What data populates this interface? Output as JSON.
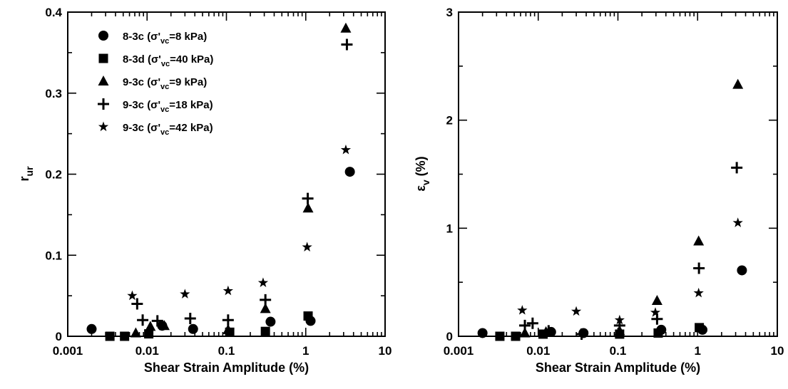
{
  "chart_data": [
    {
      "id": "left",
      "type": "scatter",
      "xscale": "log",
      "xlim": [
        0.001,
        10
      ],
      "ylim": [
        0,
        0.4
      ],
      "xlabel": "Shear Strain Amplitude (%)",
      "ylabel": {
        "main": "r",
        "sub": "ur"
      },
      "xticks": [
        {
          "v": 0.001,
          "label": "0.001"
        },
        {
          "v": 0.01,
          "label": "0.01"
        },
        {
          "v": 0.1,
          "label": "0.1"
        },
        {
          "v": 1,
          "label": "1"
        },
        {
          "v": 10,
          "label": "10"
        }
      ],
      "yticks": [
        {
          "v": 0,
          "label": "0"
        },
        {
          "v": 0.1,
          "label": "0.1"
        },
        {
          "v": 0.2,
          "label": "0.2"
        },
        {
          "v": 0.3,
          "label": "0.3"
        },
        {
          "v": 0.4,
          "label": "0.4"
        }
      ],
      "legend_position": "top-left",
      "grid": false,
      "series": [
        {
          "name": {
            "test": "8-3c (σ'",
            "sub": "vc",
            "rest": "=8 kPa)"
          },
          "marker": "circle",
          "points": [
            [
              0.002,
              0.009
            ],
            [
              0.038,
              0.009
            ],
            [
              0.36,
              0.018
            ],
            [
              1.15,
              0.019
            ],
            [
              3.6,
              0.203
            ],
            [
              0.0155,
              0.013
            ]
          ]
        },
        {
          "name": {
            "test": "8-3d (σ'",
            "sub": "vc",
            "rest": "=40 kPa)"
          },
          "marker": "square",
          "points": [
            [
              0.0034,
              0.0
            ],
            [
              0.0052,
              0.0
            ],
            [
              0.0105,
              0.003
            ],
            [
              0.11,
              0.005
            ],
            [
              0.31,
              0.006
            ],
            [
              1.07,
              0.025
            ]
          ]
        },
        {
          "name": {
            "test": "9-3c (σ'",
            "sub": "vc",
            "rest": "=9 kPa)"
          },
          "marker": "triangle",
          "points": [
            [
              0.0072,
              0.004
            ],
            [
              0.011,
              0.012
            ],
            [
              0.0165,
              0.013
            ],
            [
              0.105,
              0.008
            ],
            [
              0.31,
              0.034
            ],
            [
              1.07,
              0.158
            ],
            [
              3.2,
              0.38
            ]
          ]
        },
        {
          "name": {
            "test": "9-3c (σ'",
            "sub": "vc",
            "rest": "=18 kPa)"
          },
          "marker": "plus",
          "points": [
            [
              0.0075,
              0.04
            ],
            [
              0.0088,
              0.02
            ],
            [
              0.0135,
              0.019
            ],
            [
              0.035,
              0.022
            ],
            [
              0.105,
              0.02
            ],
            [
              0.31,
              0.045
            ],
            [
              1.06,
              0.17
            ],
            [
              3.3,
              0.36
            ]
          ]
        },
        {
          "name": {
            "test": "9-3c (σ'",
            "sub": "vc",
            "rest": "=42 kPa)"
          },
          "marker": "star",
          "points": [
            [
              0.0065,
              0.05
            ],
            [
              0.03,
              0.052
            ],
            [
              0.105,
              0.056
            ],
            [
              0.29,
              0.066
            ],
            [
              1.04,
              0.11
            ],
            [
              3.2,
              0.23
            ]
          ]
        }
      ]
    },
    {
      "id": "right",
      "type": "scatter",
      "xscale": "log",
      "xlim": [
        0.001,
        10
      ],
      "ylim": [
        0,
        3
      ],
      "xlabel": "Shear Strain Amplitude (%)",
      "ylabel": {
        "main": "ε",
        "sub": "v",
        "rest": " (%)"
      },
      "xticks": [
        {
          "v": 0.001,
          "label": "0.001"
        },
        {
          "v": 0.01,
          "label": "0.01"
        },
        {
          "v": 0.1,
          "label": "0.1"
        },
        {
          "v": 1,
          "label": "1"
        },
        {
          "v": 10,
          "label": "10"
        }
      ],
      "yticks": [
        {
          "v": 0,
          "label": "0"
        },
        {
          "v": 1,
          "label": "1"
        },
        {
          "v": 2,
          "label": "2"
        },
        {
          "v": 3,
          "label": "3"
        }
      ],
      "grid": false,
      "series": [
        {
          "marker": "circle",
          "points": [
            [
              0.002,
              0.03
            ],
            [
              0.0145,
              0.04
            ],
            [
              0.037,
              0.03
            ],
            [
              0.35,
              0.06
            ],
            [
              1.15,
              0.06
            ],
            [
              3.6,
              0.61
            ]
          ]
        },
        {
          "marker": "square",
          "points": [
            [
              0.0033,
              0.0
            ],
            [
              0.0052,
              0.0
            ],
            [
              0.0115,
              0.02
            ],
            [
              0.105,
              0.02
            ],
            [
              0.32,
              0.03
            ],
            [
              1.05,
              0.08
            ]
          ]
        },
        {
          "marker": "triangle",
          "points": [
            [
              0.0068,
              0.03
            ],
            [
              0.0125,
              0.04
            ],
            [
              0.105,
              0.05
            ],
            [
              0.31,
              0.33
            ],
            [
              1.03,
              0.88
            ],
            [
              3.2,
              2.33
            ]
          ]
        },
        {
          "marker": "plus",
          "points": [
            [
              0.0068,
              0.1
            ],
            [
              0.0085,
              0.12
            ],
            [
              0.0135,
              0.05
            ],
            [
              0.035,
              0.02
            ],
            [
              0.105,
              0.1
            ],
            [
              0.31,
              0.16
            ],
            [
              1.04,
              0.63
            ],
            [
              3.1,
              1.56
            ]
          ]
        },
        {
          "marker": "star",
          "points": [
            [
              0.0063,
              0.24
            ],
            [
              0.03,
              0.23
            ],
            [
              0.105,
              0.15
            ],
            [
              0.295,
              0.22
            ],
            [
              1.03,
              0.4
            ],
            [
              3.2,
              1.05
            ]
          ]
        }
      ]
    }
  ]
}
